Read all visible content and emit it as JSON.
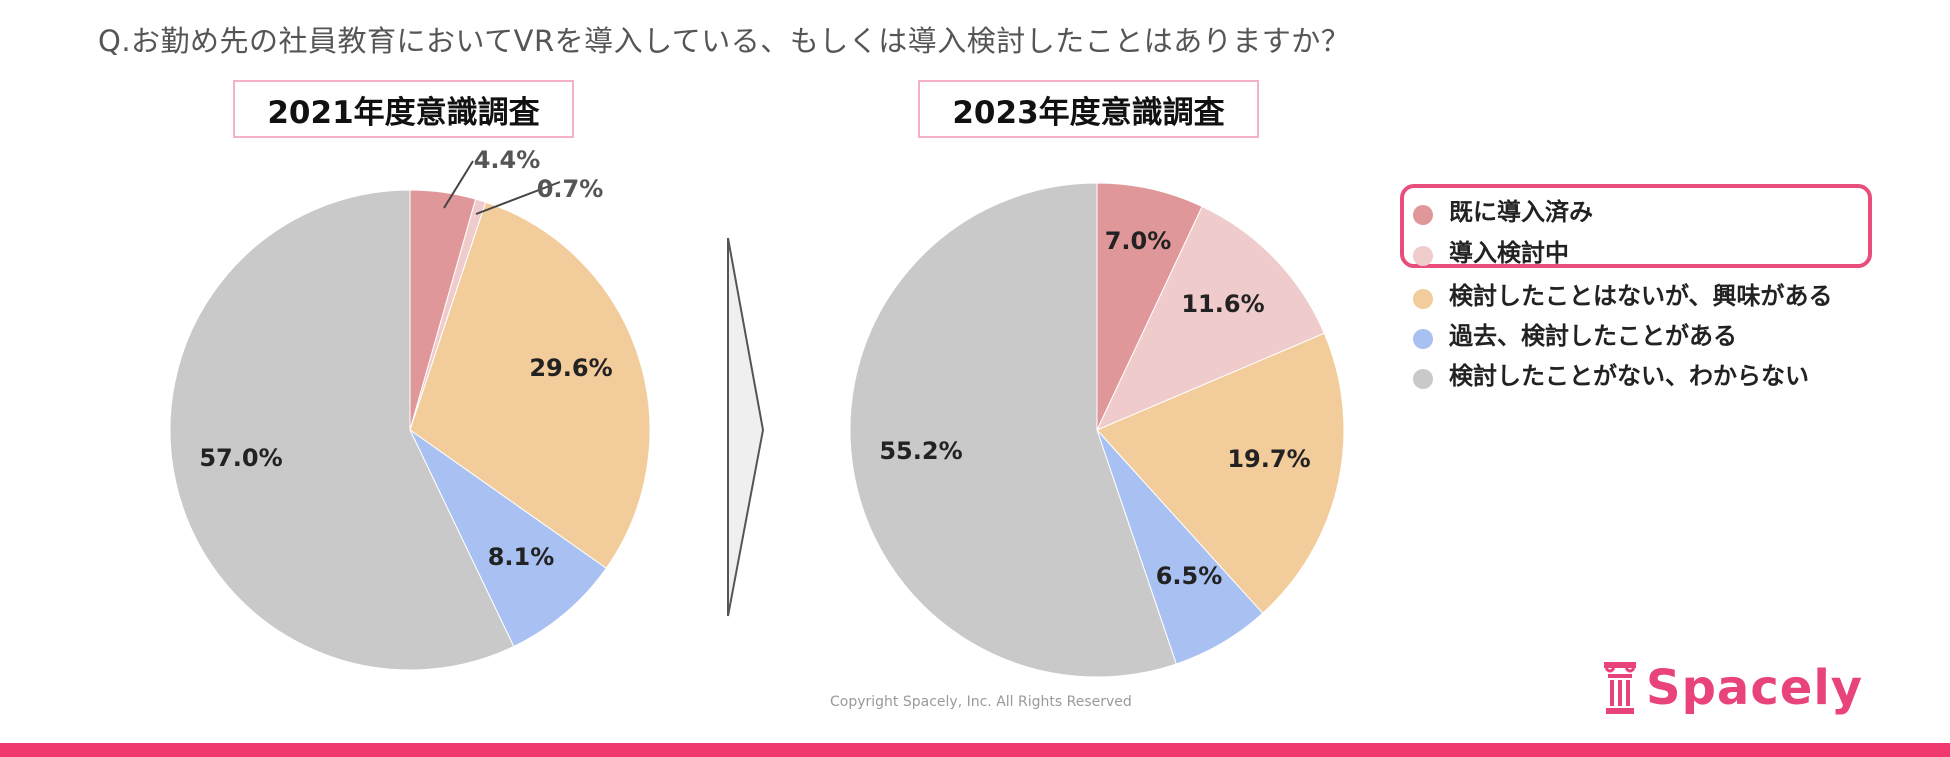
{
  "question": "Q.お勤め先の社員教育においてVRを導入している、もしくは導入検討したことはありますか？",
  "colors": {
    "introduced": "#e09799",
    "considering": "#efcbcc",
    "interested": "#f2cc9a",
    "past": "#a8c0f2",
    "none": "#c9c9c9",
    "highlight": "#e94d7b",
    "brand": "#e8437a",
    "bottom_bar": "#f0396e"
  },
  "chart_data": [
    {
      "type": "pie",
      "title": "2021年度意識調査",
      "categories": [
        "既に導入済み",
        "導入検討中",
        "検討したことはないが、興味がある",
        "過去、検討したことがある",
        "検討したことがない、わからない"
      ],
      "values": [
        4.4,
        0.7,
        29.6,
        8.1,
        57.0
      ],
      "data_labels": [
        "4.4%",
        "0.7%",
        "29.6%",
        "8.1%",
        "57.0%"
      ],
      "start_angle_deg": 0,
      "direction": "clockwise"
    },
    {
      "type": "pie",
      "title": "2023年度意識調査",
      "categories": [
        "既に導入済み",
        "導入検討中",
        "検討したことはないが、興味がある",
        "過去、検討したことがある",
        "検討したことがない、わからない"
      ],
      "values": [
        7.0,
        11.6,
        19.7,
        6.5,
        55.2
      ],
      "data_labels": [
        "7.0%",
        "11.6%",
        "19.7%",
        "6.5%",
        "55.2%"
      ],
      "start_angle_deg": 0,
      "direction": "clockwise"
    }
  ],
  "legend": {
    "items": [
      {
        "label": "既に導入済み",
        "color_key": "introduced"
      },
      {
        "label": "導入検討中",
        "color_key": "considering"
      },
      {
        "label": "検討したことはないが、興味がある",
        "color_key": "interested"
      },
      {
        "label": "過去、検討したことがある",
        "color_key": "past"
      },
      {
        "label": "検討したことがない、わからない",
        "color_key": "none"
      }
    ],
    "highlighted_count": 2
  },
  "copyright": "Copyright Spacely, Inc. All Rights Reserved",
  "logo": {
    "text": "Spacely",
    "icon": "pillar-icon"
  }
}
